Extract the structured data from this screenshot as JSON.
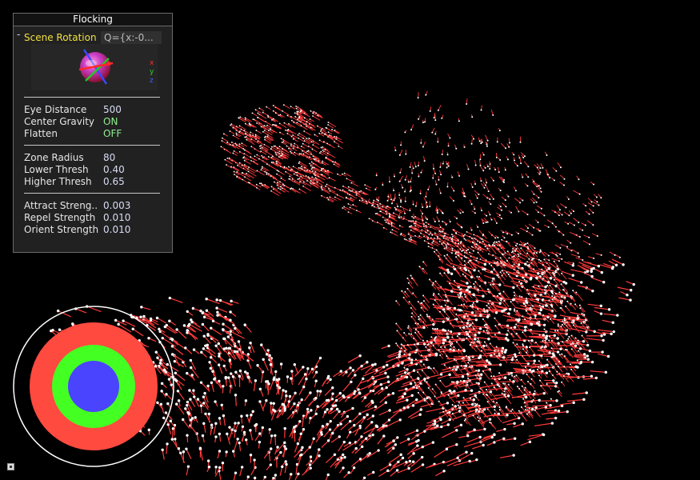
{
  "panel": {
    "title": "Flocking",
    "rotation": {
      "collapse_glyph": "-",
      "label": "Scene Rotation",
      "value": "Q={x:-0..."
    },
    "axes": {
      "x": "x",
      "y": "y",
      "z": "z"
    },
    "groups": [
      [
        {
          "label": "Eye Distance",
          "value": "500"
        },
        {
          "label": "Center Gravity",
          "value": "ON"
        },
        {
          "label": "Flatten",
          "value": "OFF"
        }
      ],
      [
        {
          "label": "Zone Radius",
          "value": "80"
        },
        {
          "label": "Lower Thresh",
          "value": "0.40"
        },
        {
          "label": "Higher Thresh",
          "value": "0.65"
        }
      ],
      [
        {
          "label": "Attract Streng..",
          "value": "0.003"
        },
        {
          "label": "Repel Strength",
          "value": "0.010"
        },
        {
          "label": "Orient Strength",
          "value": "0.010"
        }
      ]
    ]
  },
  "colors": {
    "accent_label": "#f0e040",
    "toggle_value": "#8ef08e",
    "particle_head": "#ffffff",
    "particle_tail": "#ff3a3a",
    "ring_outer": "#ff4a40",
    "ring_middle": "#44ff22",
    "ring_inner": "#4a44ff"
  }
}
